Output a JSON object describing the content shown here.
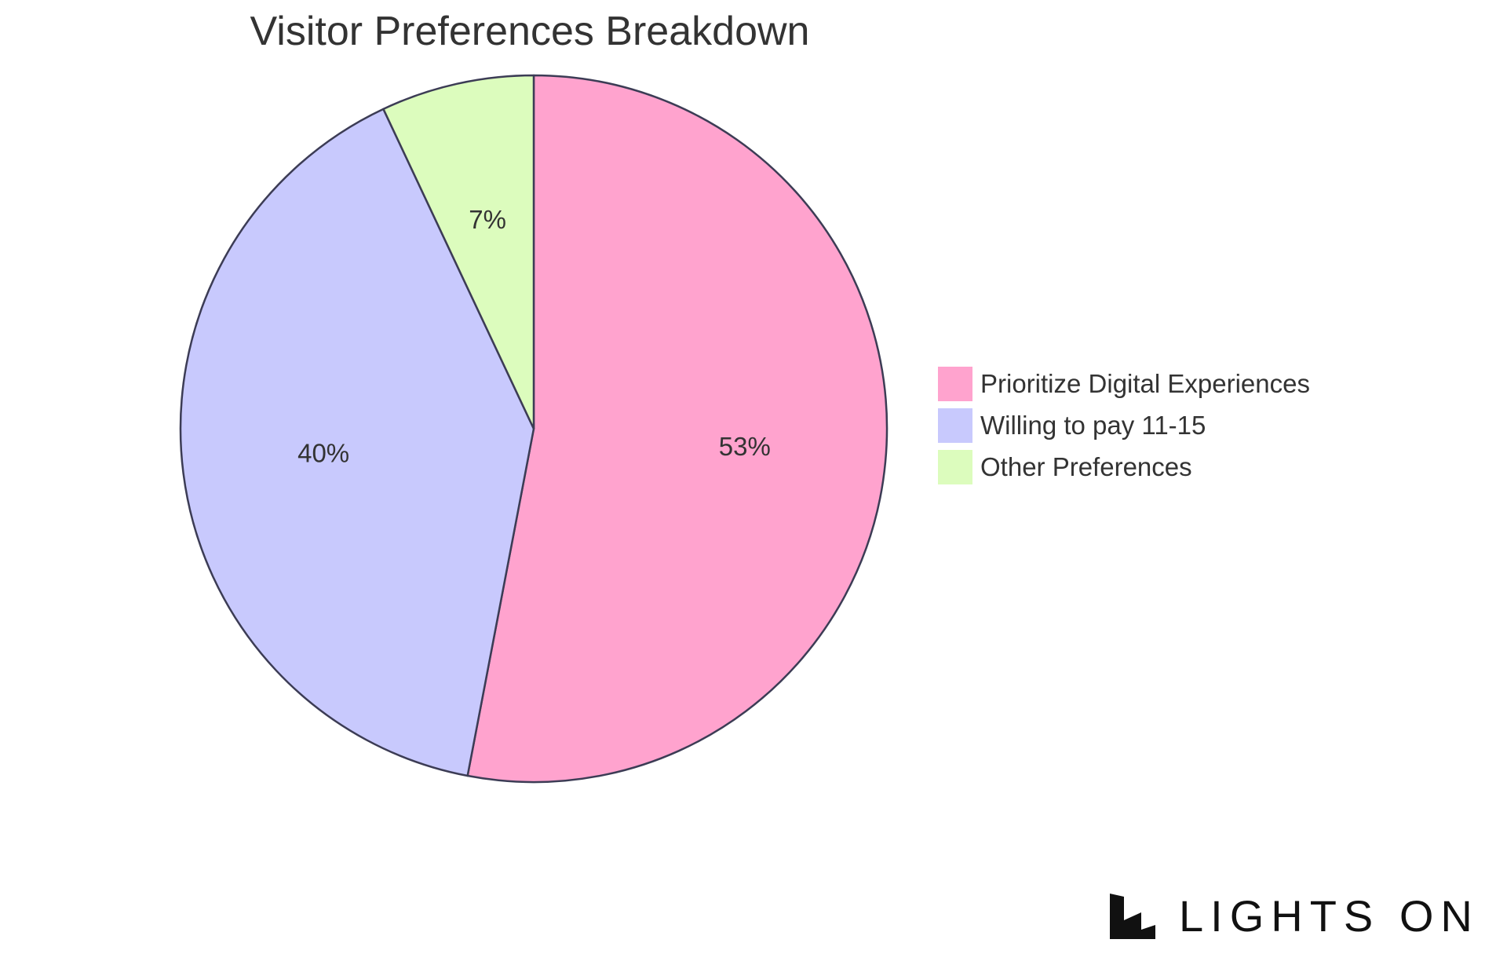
{
  "chart_data": {
    "type": "pie",
    "title": "Visitor Preferences Breakdown",
    "categories": [
      "Prioritize Digital Experiences",
      "Willing to pay 11-15",
      "Other Preferences"
    ],
    "values": [
      53,
      40,
      7
    ],
    "labels": [
      "53%",
      "40%",
      "7%"
    ],
    "colors": [
      "#FFA3CE",
      "#C8C9FD",
      "#DCFCBD"
    ],
    "stroke_color": "#3C3C55",
    "start_angle": "12 o'clock",
    "direction": "clockwise",
    "legend_position": "right"
  },
  "brand": {
    "logo_text": "LIGHTS ON",
    "logo_icon": "lights-on-logo-icon"
  }
}
